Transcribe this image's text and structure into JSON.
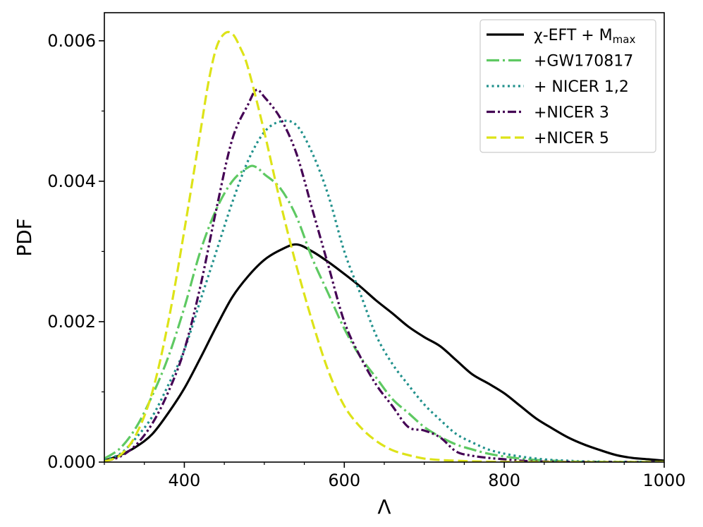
{
  "chart_data": {
    "type": "line",
    "title": "",
    "xlabel": "Λ",
    "ylabel": "PDF",
    "xlim": [
      300,
      1000
    ],
    "ylim": [
      0,
      0.0064
    ],
    "xticks": [
      400,
      600,
      800,
      1000
    ],
    "xtick_labels": [
      "400",
      "600",
      "800",
      "1000"
    ],
    "yticks": [
      0,
      0.002,
      0.004,
      0.006
    ],
    "ytick_labels": [
      "0.000",
      "0.002",
      "0.004",
      "0.006"
    ],
    "grid": false,
    "legend_position": "top-right",
    "series": [
      {
        "name": "χ-EFT + M_max",
        "legend_main": "χ-EFT + M",
        "legend_sub": "max",
        "color": "#000000",
        "dash": "solid",
        "x": [
          300,
          320,
          340,
          360,
          380,
          400,
          420,
          440,
          460,
          480,
          500,
          520,
          540,
          560,
          580,
          600,
          620,
          640,
          660,
          680,
          700,
          720,
          740,
          760,
          780,
          800,
          820,
          840,
          860,
          880,
          900,
          920,
          940,
          960,
          980,
          1000
        ],
        "y": [
          2e-05,
          0.0001,
          0.00022,
          0.0004,
          0.0007,
          0.00105,
          0.00148,
          0.00193,
          0.00235,
          0.00265,
          0.00288,
          0.00302,
          0.0031,
          0.003,
          0.00285,
          0.00268,
          0.0025,
          0.0023,
          0.00212,
          0.00193,
          0.00178,
          0.00165,
          0.00145,
          0.00125,
          0.00112,
          0.00098,
          0.0008,
          0.00062,
          0.00048,
          0.00035,
          0.00025,
          0.00017,
          0.0001,
          6e-05,
          4e-05,
          2e-05
        ]
      },
      {
        "name": "+GW170817",
        "color": "#5ec962",
        "dash": "dashdot",
        "x": [
          300,
          320,
          340,
          360,
          380,
          400,
          420,
          440,
          460,
          480,
          490,
          500,
          520,
          540,
          560,
          580,
          600,
          620,
          640,
          660,
          680,
          700,
          720,
          740,
          760,
          780,
          800,
          820,
          840,
          860,
          880,
          900,
          950,
          1000
        ],
        "y": [
          5e-05,
          0.0002,
          0.0005,
          0.00095,
          0.0015,
          0.0022,
          0.003,
          0.0036,
          0.004,
          0.0042,
          0.0042,
          0.0041,
          0.0039,
          0.0035,
          0.0029,
          0.0024,
          0.0019,
          0.0015,
          0.0012,
          0.0009,
          0.0007,
          0.0005,
          0.00036,
          0.00025,
          0.00018,
          0.00012,
          8e-05,
          5e-05,
          3e-05,
          2e-05,
          1e-05,
          5e-06,
          2e-06,
          1e-06
        ]
      },
      {
        "name": "+ NICER 1,2",
        "color": "#21918c",
        "dash": "dotted",
        "x": [
          300,
          320,
          340,
          360,
          380,
          400,
          420,
          440,
          460,
          480,
          500,
          520,
          540,
          560,
          580,
          600,
          620,
          640,
          660,
          680,
          700,
          720,
          740,
          760,
          780,
          800,
          820,
          840,
          860,
          880,
          900,
          950,
          1000
        ],
        "y": [
          3e-05,
          0.00012,
          0.00035,
          0.00065,
          0.0011,
          0.0016,
          0.0023,
          0.003,
          0.0037,
          0.0043,
          0.0047,
          0.00485,
          0.0048,
          0.0044,
          0.0038,
          0.003,
          0.0024,
          0.0018,
          0.0014,
          0.0011,
          0.00082,
          0.0006,
          0.0004,
          0.00028,
          0.00018,
          0.00012,
          8e-05,
          5e-05,
          3e-05,
          2e-05,
          1e-05,
          4e-06,
          1e-06
        ]
      },
      {
        "name": "+NICER 3",
        "color": "#440154",
        "dash": "dashdotdot",
        "x": [
          300,
          320,
          340,
          360,
          380,
          400,
          420,
          440,
          460,
          480,
          490,
          500,
          520,
          540,
          560,
          580,
          600,
          620,
          640,
          660,
          680,
          700,
          720,
          740,
          760,
          780,
          800,
          820,
          840,
          860,
          880,
          900,
          950,
          1000
        ],
        "y": [
          1e-05,
          8e-05,
          0.00025,
          0.00055,
          0.001,
          0.0016,
          0.0025,
          0.0036,
          0.0046,
          0.0051,
          0.0053,
          0.0052,
          0.0049,
          0.0044,
          0.0036,
          0.0028,
          0.002,
          0.0015,
          0.0011,
          0.0008,
          0.0005,
          0.00045,
          0.00035,
          0.00015,
          9e-05,
          6e-05,
          4e-05,
          2e-05,
          1e-05,
          6e-06,
          3e-06,
          1e-06,
          0,
          0
        ]
      },
      {
        "name": "+NICER 5",
        "color": "#dde318",
        "dash": "dashed",
        "x": [
          300,
          320,
          340,
          360,
          380,
          400,
          420,
          430,
          440,
          450,
          460,
          470,
          480,
          500,
          520,
          540,
          560,
          580,
          600,
          620,
          640,
          660,
          680,
          700,
          720,
          740,
          760,
          800,
          850,
          900,
          1000
        ],
        "y": [
          1e-05,
          0.0001,
          0.0004,
          0.001,
          0.002,
          0.0033,
          0.0047,
          0.0054,
          0.0059,
          0.0061,
          0.0061,
          0.0059,
          0.0056,
          0.0047,
          0.0037,
          0.0028,
          0.002,
          0.0013,
          0.0008,
          0.0005,
          0.0003,
          0.00017,
          0.0001,
          5e-05,
          3e-05,
          2e-05,
          1e-05,
          3e-06,
          1e-06,
          0,
          0
        ]
      }
    ]
  }
}
